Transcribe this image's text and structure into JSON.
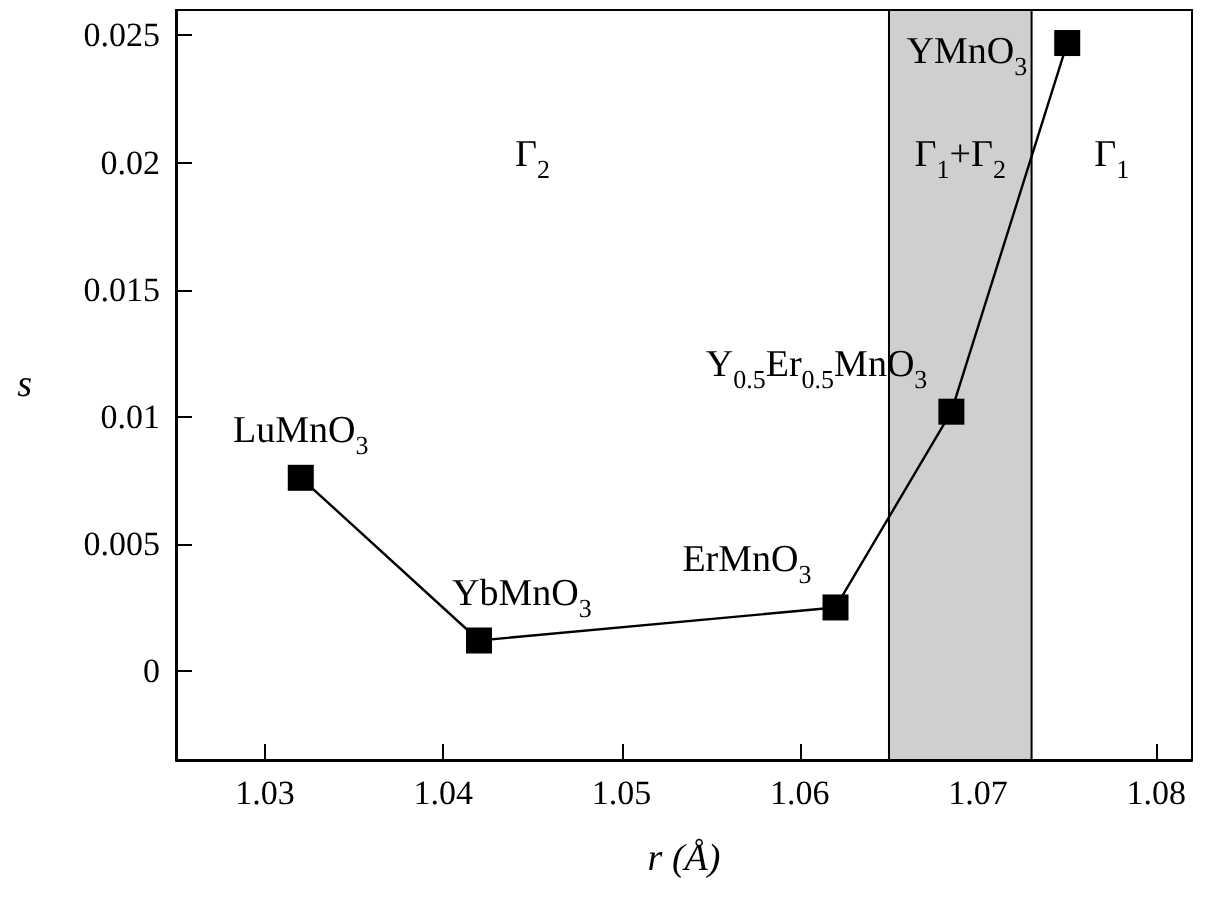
{
  "chart_data": {
    "type": "line",
    "xlabel": "r (Å)",
    "ylabel": "s",
    "x": [
      1.032,
      1.042,
      1.062,
      1.0685,
      1.075
    ],
    "series": [
      {
        "color": "#000000",
        "values": [
          0.0076,
          0.0012,
          0.0025,
          0.0102,
          0.0247
        ]
      }
    ],
    "marker": "square",
    "line_style": "solid",
    "grid": false,
    "xlim": [
      1.025,
      1.082
    ],
    "xticks": [
      1.03,
      1.04,
      1.05,
      1.06,
      1.07,
      1.08
    ],
    "ylim": [
      -0.0035,
      0.026
    ],
    "yticks": [
      0,
      0.005,
      0.01,
      0.015,
      0.02,
      0.025
    ],
    "bands": [
      {
        "axis": "x",
        "from": 1.065,
        "to": 1.073,
        "color": "#cfcfcf"
      }
    ],
    "annotations": [
      "Γ$_{2}$",
      "Γ$_{1}$+Γ$_{2}$",
      "Γ$_{1}$",
      {
        "text": "LuMnO$_{3}$",
        "x": 1.032,
        "y": 0.0076
      },
      {
        "text": "YbMnO$_{3}$",
        "x": 1.042,
        "y": 0.0012
      },
      {
        "text": "ErMnO$_{3}$",
        "x": 1.062,
        "y": 0.0025
      },
      {
        "text": "Y$_{0.5}$Er$_{0.5}$MnO$_{3}$",
        "x": 1.0685,
        "y": 0.0102
      },
      {
        "text": "YMnO$_{3}$",
        "x": 1.075,
        "y": 0.0247
      }
    ]
  }
}
